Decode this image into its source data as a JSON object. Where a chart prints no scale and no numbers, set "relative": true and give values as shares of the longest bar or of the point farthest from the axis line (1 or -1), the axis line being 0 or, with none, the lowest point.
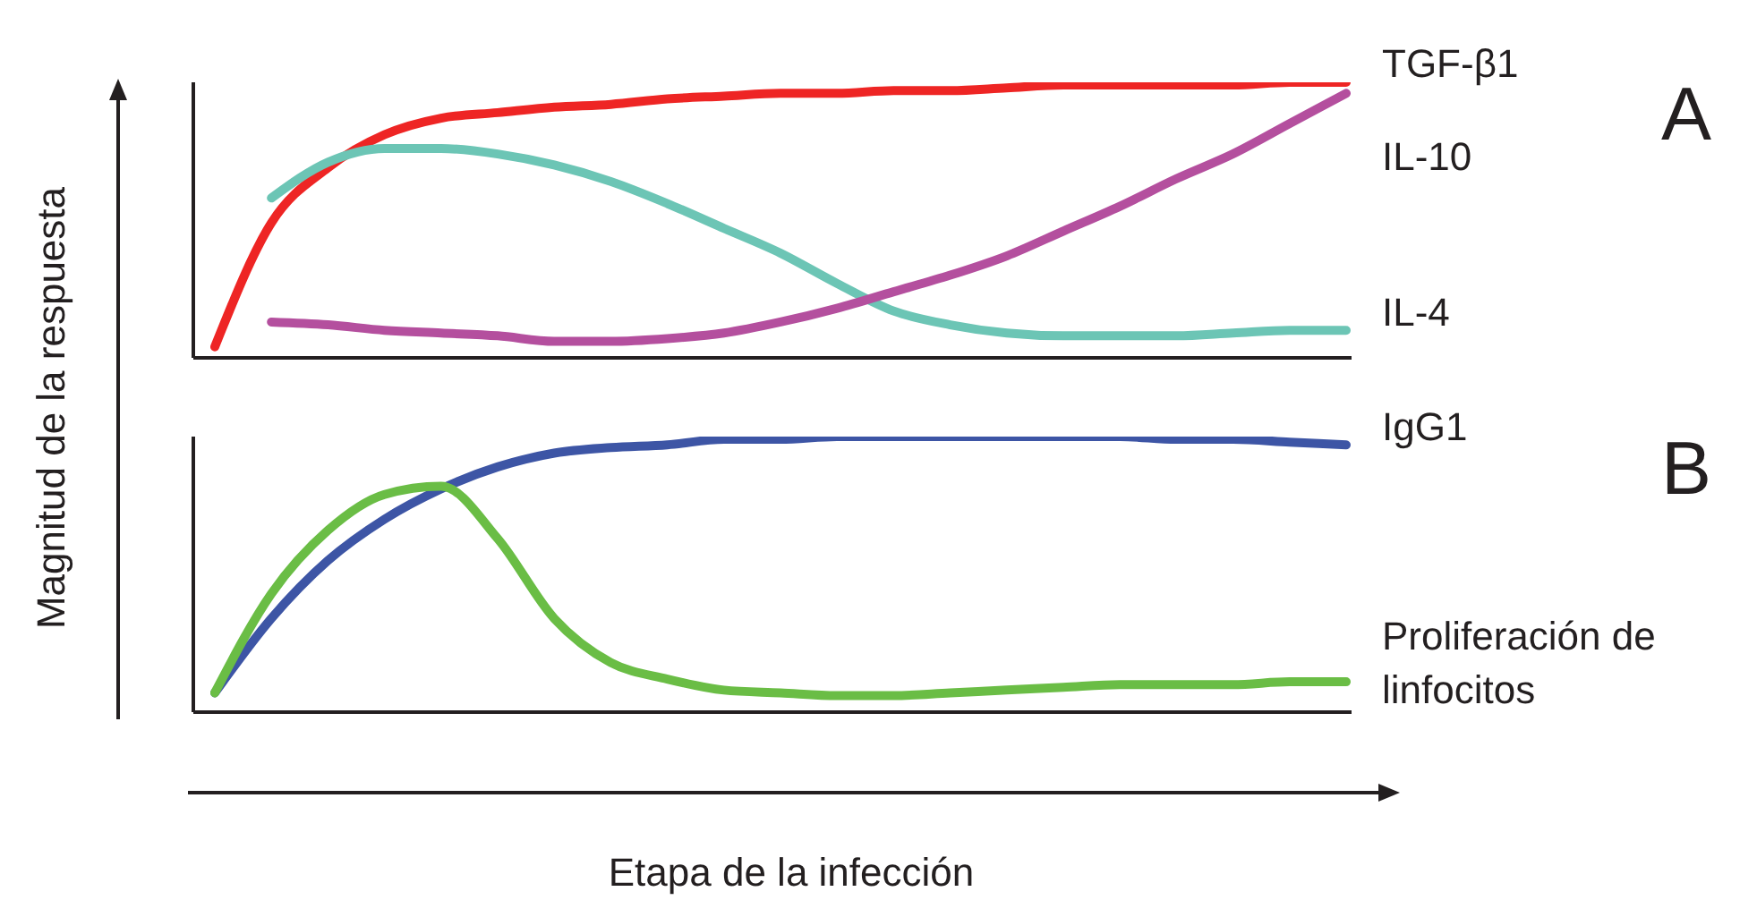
{
  "chart_data": [
    {
      "type": "line",
      "relative": true,
      "ylabel": "Magnitud de la respuesta",
      "annotations": [
        "A"
      ],
      "tick_labels": false,
      "marker": "none",
      "line_style": "solid",
      "categories": [
        null,
        null,
        null,
        null,
        null,
        null,
        null,
        null,
        null,
        null,
        null,
        null,
        null,
        null,
        null,
        null,
        null,
        null,
        null,
        null,
        null
      ],
      "series": [
        {
          "name": "TGF-β1",
          "color": "#ee2524",
          "values": [
            0.04,
            0.49,
            0.69,
            0.81,
            0.87,
            0.89,
            0.91,
            0.92,
            0.94,
            0.95,
            0.96,
            0.96,
            0.97,
            0.97,
            0.98,
            0.99,
            0.99,
            0.99,
            0.99,
            1,
            1
          ]
        },
        {
          "name": "IL-4",
          "color": "#6cc5b5",
          "values": [
            null,
            0.58,
            0.71,
            0.76,
            0.76,
            0.74,
            0.7,
            0.64,
            0.56,
            0.47,
            0.38,
            0.27,
            0.17,
            0.12,
            0.09,
            0.08,
            0.08,
            0.08,
            0.09,
            0.1,
            0.1
          ]
        },
        {
          "name": "IL-10",
          "color": "#b44f9e",
          "values": [
            null,
            0.13,
            0.12,
            0.1,
            0.09,
            0.08,
            0.06,
            0.06,
            0.07,
            0.09,
            0.13,
            0.18,
            0.24,
            0.3,
            0.37,
            0.46,
            0.55,
            0.65,
            0.74,
            0.85,
            0.96
          ]
        }
      ]
    },
    {
      "type": "line",
      "relative": true,
      "xlabel": "Etapa de la infección",
      "annotations": [
        "B"
      ],
      "tick_labels": false,
      "marker": "none",
      "line_style": "solid",
      "categories": [
        null,
        null,
        null,
        null,
        null,
        null,
        null,
        null,
        null,
        null,
        null,
        null,
        null,
        null,
        null,
        null,
        null,
        null,
        null,
        null,
        null
      ],
      "series": [
        {
          "name": "IgG1",
          "color": "#3d55a5",
          "values": [
            0.07,
            0.34,
            0.55,
            0.7,
            0.81,
            0.89,
            0.94,
            0.96,
            0.97,
            0.99,
            0.99,
            1,
            1,
            1,
            1,
            1,
            1,
            0.99,
            0.99,
            0.98,
            0.97
          ]
        },
        {
          "name": "Proliferación de linfocitos",
          "color": "#6abd45",
          "values": [
            0.07,
            0.43,
            0.66,
            0.79,
            0.82,
            0.63,
            0.34,
            0.18,
            0.12,
            0.08,
            0.07,
            0.06,
            0.06,
            0.07,
            0.08,
            0.09,
            0.1,
            0.1,
            0.1,
            0.11,
            0.11
          ]
        }
      ]
    }
  ]
}
